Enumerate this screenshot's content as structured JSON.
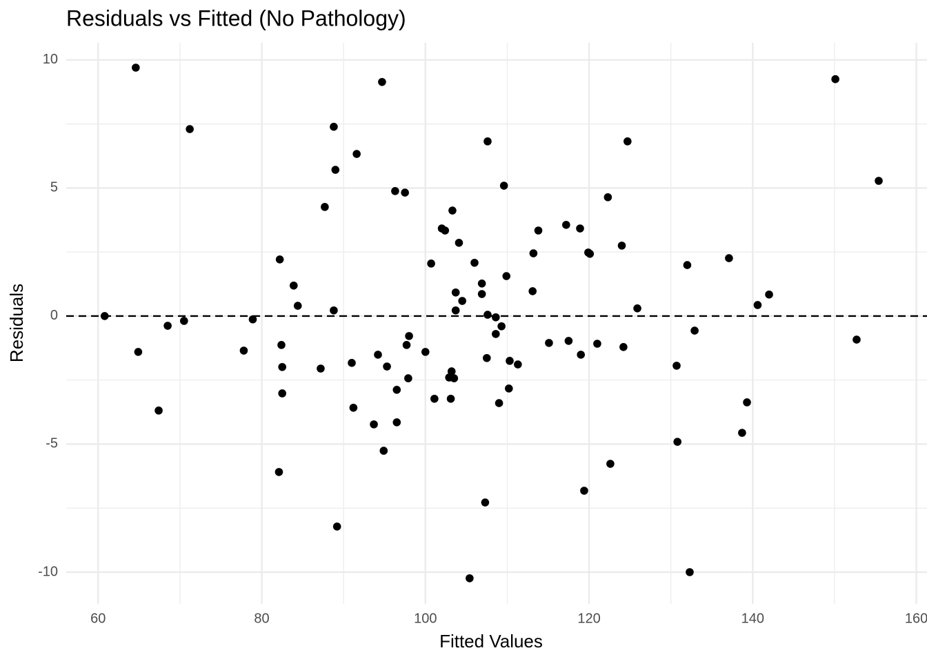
{
  "chart_data": {
    "type": "scatter",
    "title": "Residuals vs Fitted (No Pathology)",
    "x_label": "Fitted Values",
    "y_label": "Residuals",
    "x": [
      64.6,
      71.2,
      60.8,
      64.9,
      67.4,
      68.5,
      70.5,
      77.8,
      78.9,
      82.2,
      82.1,
      82.4,
      82.5,
      82.5,
      83.9,
      84.4,
      87.2,
      87.7,
      88.8,
      88.8,
      89.0,
      89.2,
      91.0,
      91.2,
      91.6,
      93.7,
      94.2,
      94.7,
      94.9,
      95.3,
      96.3,
      96.5,
      96.5,
      97.5,
      97.7,
      98.0,
      97.9,
      100.0,
      100.7,
      101.1,
      102.0,
      102.4,
      102.9,
      103.1,
      103.2,
      103.3,
      103.5,
      103.7,
      103.7,
      104.1,
      104.5,
      105.4,
      106.0,
      106.9,
      106.9,
      107.3,
      107.5,
      107.6,
      107.6,
      108.6,
      108.6,
      109.0,
      109.3,
      109.6,
      109.9,
      110.2,
      110.3,
      111.3,
      113.1,
      113.2,
      113.8,
      115.1,
      117.2,
      117.5,
      118.9,
      119.0,
      119.4,
      119.9,
      120.1,
      121.0,
      122.3,
      122.6,
      124.0,
      124.2,
      124.7,
      125.9,
      130.7,
      130.8,
      132.0,
      132.3,
      132.9,
      137.1,
      138.7,
      139.3,
      140.6,
      142.0,
      150.1,
      152.7,
      155.4
    ],
    "values": [
      9.7,
      7.3,
      0.0,
      -1.4,
      -3.69,
      -0.38,
      -0.19,
      -1.35,
      -0.13,
      2.21,
      -6.09,
      -1.13,
      -1.99,
      -3.02,
      1.19,
      0.4,
      -2.05,
      4.26,
      0.22,
      7.39,
      5.71,
      -8.22,
      -1.83,
      -3.58,
      6.33,
      -4.23,
      -1.51,
      9.14,
      -5.26,
      -1.97,
      4.88,
      -2.88,
      -4.15,
      4.82,
      -1.13,
      -0.78,
      -2.43,
      -1.4,
      2.05,
      -3.23,
      3.42,
      3.34,
      -2.4,
      -3.23,
      -2.16,
      4.12,
      -2.43,
      0.92,
      0.22,
      2.86,
      0.59,
      -10.24,
      2.08,
      1.27,
      0.86,
      -7.28,
      -1.64,
      6.82,
      0.05,
      -0.05,
      -0.7,
      -3.4,
      -0.4,
      5.09,
      1.56,
      -2.83,
      -1.75,
      -1.89,
      0.97,
      2.45,
      3.34,
      -1.05,
      3.56,
      -0.97,
      3.42,
      -1.51,
      -6.82,
      2.48,
      2.43,
      -1.08,
      4.64,
      -5.77,
      2.75,
      -1.21,
      6.82,
      0.3,
      -1.94,
      -4.91,
      1.99,
      -10.0,
      -0.57,
      2.26,
      -4.56,
      -3.37,
      0.43,
      0.84,
      9.25,
      -0.92,
      5.28
    ],
    "color": "#000000",
    "hline": 0,
    "xlim": [
      56.1,
      161.3
    ],
    "ylim": [
      -11.24,
      10.67
    ],
    "xticks": [
      60,
      80,
      100,
      120,
      140,
      160
    ],
    "yticks": [
      -10,
      -5,
      0,
      5,
      10
    ],
    "x_minor_grid": [
      70,
      90,
      110,
      130,
      150
    ],
    "y_minor_grid": [
      -7.5,
      -2.5,
      2.5,
      7.5
    ],
    "grid": true
  }
}
